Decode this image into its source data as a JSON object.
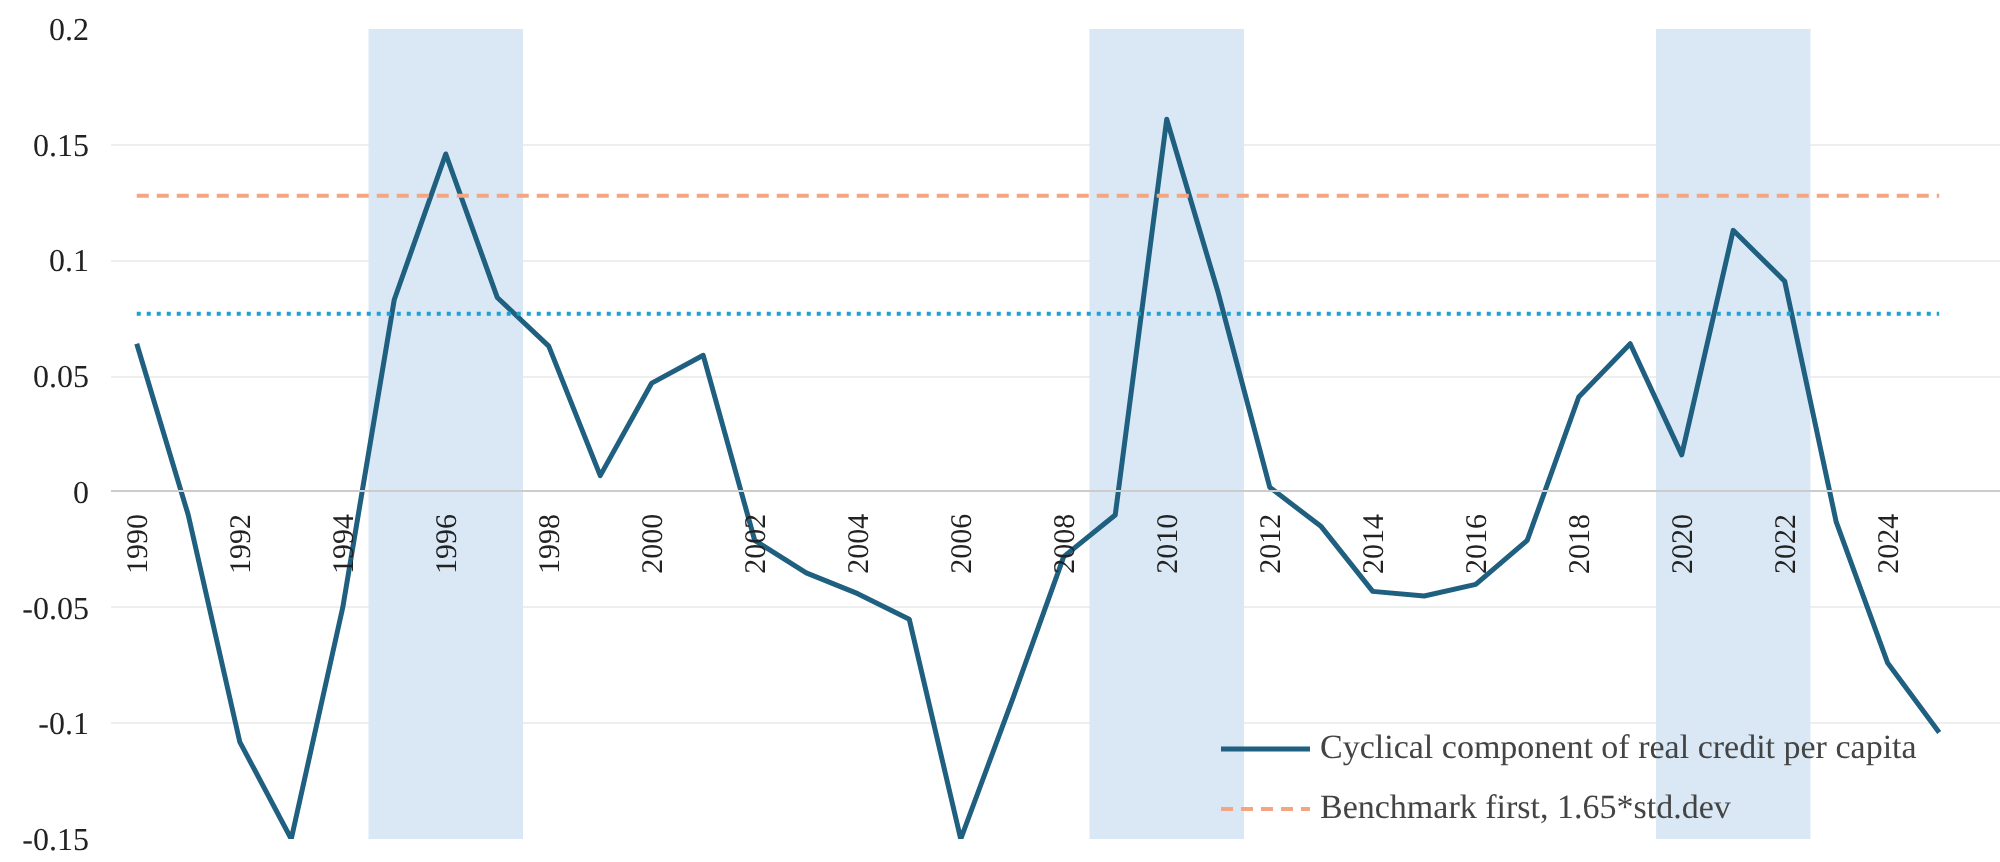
{
  "chart_data": {
    "type": "line",
    "x": [
      1990,
      1991,
      1992,
      1993,
      1994,
      1995,
      1996,
      1997,
      1998,
      1999,
      2000,
      2001,
      2002,
      2003,
      2004,
      2005,
      2006,
      2007,
      2008,
      2009,
      2010,
      2011,
      2012,
      2013,
      2014,
      2015,
      2016,
      2017,
      2018,
      2019,
      2020,
      2021,
      2022,
      2023,
      2024,
      2025
    ],
    "series": [
      {
        "name": "Cyclical component of real credit per capita",
        "color": "#1f5f7f",
        "values": [
          0.064,
          -0.01,
          -0.108,
          -0.15,
          -0.05,
          0.083,
          0.146,
          0.084,
          0.063,
          0.007,
          0.047,
          0.059,
          -0.021,
          -0.035,
          -0.044,
          -0.055,
          -0.15,
          -0.09,
          -0.028,
          -0.01,
          0.161,
          0.086,
          0.002,
          -0.015,
          -0.043,
          -0.045,
          -0.04,
          -0.021,
          0.041,
          0.064,
          0.016,
          0.113,
          0.091,
          -0.013,
          -0.074,
          -0.104
        ]
      }
    ],
    "ref_lines": [
      {
        "axis": "y",
        "value": 0.128,
        "label": "Benchmark first, 1.65*std.dev",
        "color": "#f4a582",
        "line_style": "dashed"
      },
      {
        "axis": "y",
        "value": 0.077,
        "color": "#1fa0d0",
        "line_style": "dotted"
      }
    ],
    "bands": [
      {
        "axis": "x",
        "from": 1994.5,
        "to": 1997.5,
        "color": "#dae8f5"
      },
      {
        "axis": "x",
        "from": 2008.5,
        "to": 2011.5,
        "color": "#dae8f5"
      },
      {
        "axis": "x",
        "from": 2019.5,
        "to": 2022.5,
        "color": "#dae8f5"
      }
    ],
    "xlim": [
      1989.5,
      2026.2
    ],
    "xticks": [
      1990,
      1992,
      1994,
      1996,
      1998,
      2000,
      2002,
      2004,
      2006,
      2008,
      2010,
      2012,
      2014,
      2016,
      2018,
      2020,
      2022,
      2024
    ],
    "ylim": [
      -0.15,
      0.2
    ],
    "yticks": [
      -0.15,
      -0.1,
      -0.05,
      0,
      0.05,
      0.1,
      0.15,
      0.2
    ],
    "grid": "y",
    "legend": "bottom right"
  }
}
